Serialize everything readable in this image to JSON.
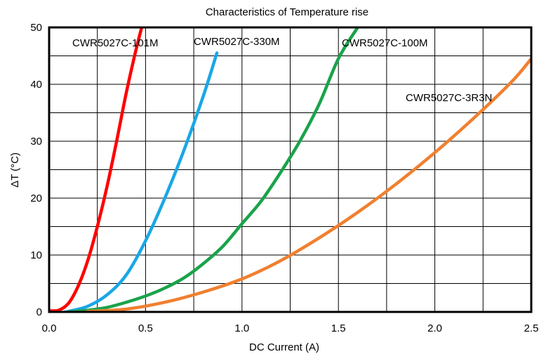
{
  "chart_data": {
    "type": "line",
    "title": "Characteristics of Temperature rise",
    "xlabel": "DC Current (A)",
    "ylabel": "ΔT (°C)",
    "xlim": [
      0,
      2.5
    ],
    "ylim": [
      0,
      50
    ],
    "grid": true,
    "x_ticks": [
      "0.0",
      "0.5",
      "1.0",
      "1.5",
      "2.0",
      "2.5"
    ],
    "y_ticks": [
      "0",
      "10",
      "20",
      "30",
      "40",
      "50"
    ],
    "series": [
      {
        "name": "CWR5027C-101M",
        "color": "#ff0000",
        "x": [
          0.0,
          0.05,
          0.1,
          0.15,
          0.2,
          0.25,
          0.3,
          0.35,
          0.4,
          0.45,
          0.48
        ],
        "y": [
          0.2,
          0.3,
          1.5,
          4.5,
          9.0,
          15.0,
          22.0,
          30.0,
          38.5,
          46.0,
          50.0
        ]
      },
      {
        "name": "CWR5027C-330M",
        "color": "#1aa7e6",
        "x": [
          0.08,
          0.1,
          0.2,
          0.3,
          0.4,
          0.5,
          0.6,
          0.7,
          0.8,
          0.87
        ],
        "y": [
          0.0,
          0.1,
          1.0,
          3.0,
          6.5,
          12.5,
          20.0,
          28.5,
          38.0,
          45.5
        ]
      },
      {
        "name": "CWR5027C-100M",
        "color": "#1aa34a",
        "x": [
          0.1,
          0.2,
          0.3,
          0.4,
          0.5,
          0.6,
          0.7,
          0.8,
          0.9,
          1.0,
          1.1,
          1.2,
          1.3,
          1.4,
          1.5,
          1.6
        ],
        "y": [
          0.0,
          0.3,
          0.8,
          1.7,
          2.8,
          4.2,
          6.0,
          8.5,
          11.5,
          15.5,
          19.5,
          24.5,
          30.0,
          36.5,
          44.5,
          50.0
        ]
      },
      {
        "name": "CWR5027C-3R3N",
        "color": "#f08030",
        "x": [
          0.2,
          0.4,
          0.6,
          0.8,
          1.0,
          1.2,
          1.4,
          1.6,
          1.8,
          2.0,
          2.2,
          2.4,
          2.5
        ],
        "y": [
          0.1,
          0.5,
          1.7,
          3.5,
          5.8,
          9.0,
          13.0,
          17.5,
          22.5,
          28.0,
          34.0,
          40.5,
          44.5
        ]
      }
    ]
  }
}
